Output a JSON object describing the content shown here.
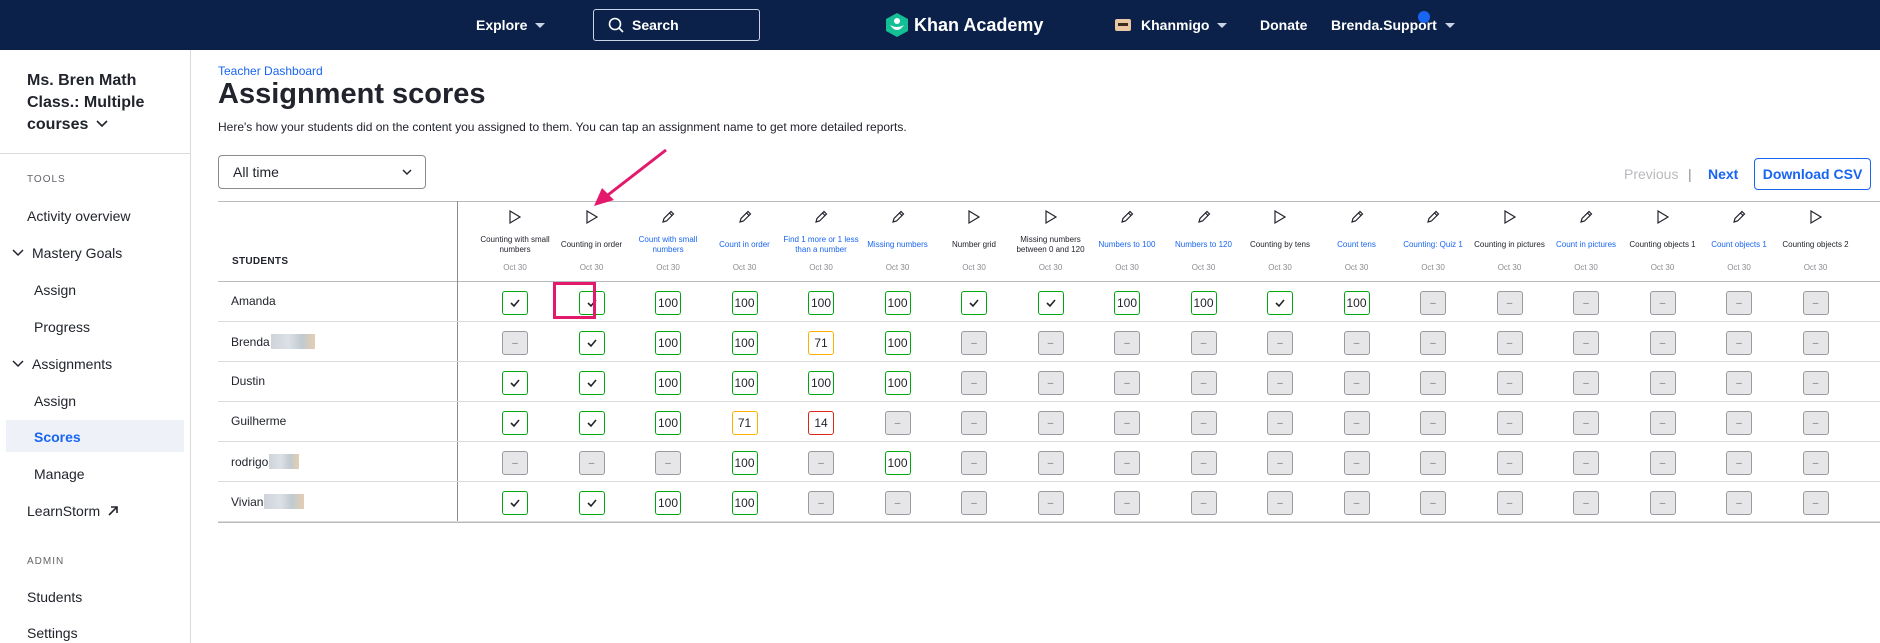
{
  "topnav": {
    "explore": "Explore",
    "search": "Search",
    "logo": "Khan Academy",
    "khanmigo": "Khanmigo",
    "donate": "Donate",
    "user": "Brenda.Support"
  },
  "sidebar": {
    "class_title": "Ms. Bren Math Class.: Multiple courses",
    "tools_heading": "TOOLS",
    "activity_overview": "Activity overview",
    "mastery_goals": "Mastery Goals",
    "mastery_assign": "Assign",
    "mastery_progress": "Progress",
    "assignments": "Assignments",
    "assignments_assign": "Assign",
    "assignments_scores": "Scores",
    "assignments_manage": "Manage",
    "learnstorm": "LearnStorm",
    "admin_heading": "ADMIN",
    "students": "Students",
    "settings": "Settings"
  },
  "main": {
    "breadcrumb": "Teacher Dashboard",
    "title": "Assignment scores",
    "subtitle": "Here's how your students did on the content you assigned to them. You can tap an assignment name to get more detailed reports.",
    "time_filter": "All time",
    "previous": "Previous",
    "separator": "|",
    "next": "Next",
    "download_csv": "Download CSV"
  },
  "table": {
    "students_header": "STUDENTS",
    "columns": [
      {
        "name": "Counting with small numbers",
        "date": "Oct 30",
        "icon": "play-icon",
        "link": false
      },
      {
        "name": "Counting in order",
        "date": "Oct 30",
        "icon": "play-icon",
        "link": false
      },
      {
        "name": "Count with small numbers",
        "date": "Oct 30",
        "icon": "pencil-icon",
        "link": true
      },
      {
        "name": "Count in order",
        "date": "Oct 30",
        "icon": "pencil-icon",
        "link": true
      },
      {
        "name": "Find 1 more or 1 less than a number",
        "date": "Oct 30",
        "icon": "pencil-icon",
        "link": true
      },
      {
        "name": "Missing numbers",
        "date": "Oct 30",
        "icon": "pencil-icon",
        "link": true
      },
      {
        "name": "Number grid",
        "date": "Oct 30",
        "icon": "play-icon",
        "link": false
      },
      {
        "name": "Missing numbers between 0 and 120",
        "date": "Oct 30",
        "icon": "play-icon",
        "link": false
      },
      {
        "name": "Numbers to 100",
        "date": "Oct 30",
        "icon": "pencil-icon",
        "link": true
      },
      {
        "name": "Numbers to 120",
        "date": "Oct 30",
        "icon": "pencil-icon",
        "link": true
      },
      {
        "name": "Counting by tens",
        "date": "Oct 30",
        "icon": "play-icon",
        "link": false
      },
      {
        "name": "Count tens",
        "date": "Oct 30",
        "icon": "pencil-icon",
        "link": true
      },
      {
        "name": "Counting: Quiz 1",
        "date": "Oct 30",
        "icon": "pencil-icon",
        "link": true
      },
      {
        "name": "Counting in pictures",
        "date": "Oct 30",
        "icon": "play-icon",
        "link": false
      },
      {
        "name": "Count in pictures",
        "date": "Oct 30",
        "icon": "pencil-icon",
        "link": true
      },
      {
        "name": "Counting objects 1",
        "date": "Oct 30",
        "icon": "play-icon",
        "link": false
      },
      {
        "name": "Count objects 1",
        "date": "Oct 30",
        "icon": "pencil-icon",
        "link": true
      },
      {
        "name": "Counting objects 2",
        "date": "Oct 30",
        "icon": "play-icon",
        "link": false
      }
    ],
    "rows": [
      {
        "name": "Amanda",
        "cells": [
          "check",
          "check",
          "100",
          "100",
          "100",
          "100",
          "check",
          "check",
          "100",
          "100",
          "check",
          "100",
          "–",
          "–",
          "–",
          "–",
          "–",
          "–"
        ]
      },
      {
        "name": "Brenda",
        "cells": [
          "–",
          "check",
          "100",
          "100",
          "71",
          "100",
          "–",
          "–",
          "–",
          "–",
          "–",
          "–",
          "–",
          "–",
          "–",
          "–",
          "–",
          "–"
        ]
      },
      {
        "name": "Dustin",
        "cells": [
          "check",
          "check",
          "100",
          "100",
          "100",
          "100",
          "–",
          "–",
          "–",
          "–",
          "–",
          "–",
          "–",
          "–",
          "–",
          "–",
          "–",
          "–"
        ]
      },
      {
        "name": "Guilherme",
        "cells": [
          "check",
          "check",
          "100",
          "71",
          "14",
          "–",
          "–",
          "–",
          "–",
          "–",
          "–",
          "–",
          "–",
          "–",
          "–",
          "–",
          "–",
          "–"
        ]
      },
      {
        "name": "rodrigo",
        "cells": [
          "–",
          "–",
          "–",
          "100",
          "–",
          "100",
          "–",
          "–",
          "–",
          "–",
          "–",
          "–",
          "–",
          "–",
          "–",
          "–",
          "–",
          "–"
        ]
      },
      {
        "name": "Vivian",
        "cells": [
          "check",
          "check",
          "100",
          "100",
          "–",
          "–",
          "–",
          "–",
          "–",
          "–",
          "–",
          "–",
          "–",
          "–",
          "–",
          "–",
          "–",
          "–"
        ]
      }
    ]
  },
  "colors": {
    "nav_bg": "#0b2149",
    "link_blue": "#1865f2",
    "score_green": "#00a60e",
    "score_amber": "#ffb100",
    "score_red": "#d92916",
    "annotation_pink": "#e3196b"
  }
}
